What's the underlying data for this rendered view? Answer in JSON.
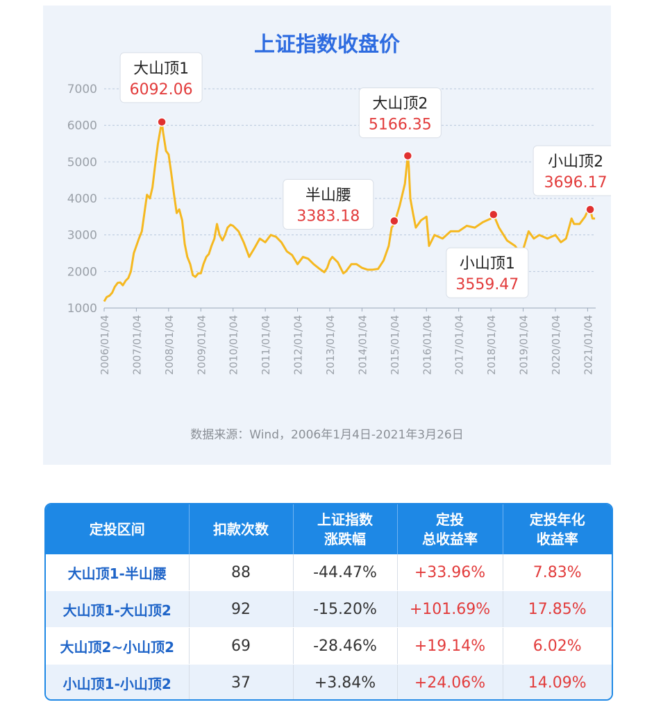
{
  "chart_data": {
    "type": "line",
    "title": "上证指数收盘价",
    "source": "数据来源：Wind，2006年1月4日-2021年3月26日",
    "ylim": [
      1000,
      7000
    ],
    "yticks": [
      1000,
      2000,
      3000,
      4000,
      5000,
      6000,
      7000
    ],
    "x_tick_labels": [
      "2006/01/04",
      "2007/01/04",
      "2008/01/04",
      "2009/01/04",
      "2010/01/04",
      "2011/01/04",
      "2012/01/04",
      "2013/01/04",
      "2014/01/04",
      "2015/01/04",
      "2016/01/04",
      "2017/01/04",
      "2018/01/04",
      "2019/01/04",
      "2020/01/04",
      "2021/01/04"
    ],
    "grid": true,
    "line_color": "#f5b81f",
    "series": [
      {
        "x": [
          2006.0,
          2006.08,
          2006.17,
          2006.25,
          2006.33,
          2006.42,
          2006.5,
          2006.58,
          2006.67,
          2006.75,
          2006.83,
          2006.92,
          2007.0,
          2007.08,
          2007.17,
          2007.25,
          2007.33,
          2007.42,
          2007.5,
          2007.58,
          2007.67,
          2007.75,
          2007.79,
          2007.83,
          2007.92,
          2008.0,
          2008.08,
          2008.17,
          2008.25,
          2008.33,
          2008.42,
          2008.5,
          2008.58,
          2008.67,
          2008.75,
          2008.83,
          2008.92,
          2009.0,
          2009.08,
          2009.17,
          2009.25,
          2009.33,
          2009.42,
          2009.5,
          2009.58,
          2009.67,
          2009.75,
          2009.83,
          2009.92,
          2010.0,
          2010.17,
          2010.33,
          2010.5,
          2010.67,
          2010.83,
          2011.0,
          2011.17,
          2011.33,
          2011.5,
          2011.67,
          2011.83,
          2012.0,
          2012.17,
          2012.33,
          2012.5,
          2012.67,
          2012.83,
          2012.92,
          2013.0,
          2013.08,
          2013.25,
          2013.42,
          2013.5,
          2013.67,
          2013.83,
          2014.0,
          2014.17,
          2014.33,
          2014.5,
          2014.67,
          2014.83,
          2014.92,
          2015.0,
          2015.17,
          2015.33,
          2015.42,
          2015.45,
          2015.5,
          2015.58,
          2015.67,
          2015.83,
          2016.0,
          2016.08,
          2016.25,
          2016.5,
          2016.75,
          2017.0,
          2017.25,
          2017.5,
          2017.75,
          2018.0,
          2018.08,
          2018.25,
          2018.5,
          2018.75,
          2018.92,
          2019.0,
          2019.17,
          2019.33,
          2019.5,
          2019.75,
          2020.0,
          2020.17,
          2020.33,
          2020.5,
          2020.58,
          2020.75,
          2020.92,
          2021.0,
          2021.08,
          2021.15,
          2021.23
        ],
        "y": [
          1180,
          1300,
          1340,
          1420,
          1580,
          1690,
          1700,
          1620,
          1750,
          1820,
          2000,
          2500,
          2700,
          2900,
          3100,
          3600,
          4100,
          4000,
          4300,
          4900,
          5500,
          5900,
          6092,
          5800,
          5300,
          5200,
          4700,
          4100,
          3600,
          3700,
          3400,
          2750,
          2400,
          2200,
          1900,
          1850,
          1950,
          1950,
          2200,
          2400,
          2480,
          2700,
          2900,
          3300,
          3000,
          2850,
          3000,
          3200,
          3280,
          3250,
          3100,
          2800,
          2400,
          2650,
          2900,
          2800,
          3000,
          2950,
          2800,
          2550,
          2450,
          2200,
          2400,
          2350,
          2200,
          2080,
          1980,
          2100,
          2300,
          2400,
          2250,
          1950,
          2000,
          2200,
          2200,
          2100,
          2050,
          2050,
          2070,
          2300,
          2700,
          3200,
          3300,
          3800,
          4400,
          5166,
          4900,
          4000,
          3600,
          3200,
          3400,
          3500,
          2700,
          3000,
          2900,
          3100,
          3100,
          3250,
          3200,
          3350,
          3450,
          3559,
          3200,
          2850,
          2700,
          2500,
          2600,
          3100,
          2900,
          3000,
          2900,
          3000,
          2800,
          2900,
          3450,
          3300,
          3300,
          3500,
          3650,
          3696,
          3450,
          3450
        ]
      }
    ],
    "annotations": [
      {
        "name": "大山顶1",
        "value": "6092.06",
        "x": 2007.79,
        "y": 6092
      },
      {
        "name": "大山顶2",
        "value": "5166.35",
        "x": 2015.42,
        "y": 5166
      },
      {
        "name": "半山腰",
        "value": "3383.18",
        "x": 2015.0,
        "y": 3383
      },
      {
        "name": "小山顶1",
        "value": "3559.47",
        "x": 2018.08,
        "y": 3559
      },
      {
        "name": "小山顶2",
        "value": "3696.17",
        "x": 2021.08,
        "y": 3696
      }
    ]
  },
  "table": {
    "headers": [
      {
        "line1": "定投区间",
        "line2": ""
      },
      {
        "line1": "扣款次数",
        "line2": ""
      },
      {
        "line1": "上证指数",
        "line2": "涨跌幅"
      },
      {
        "line1": "定投",
        "line2": "总收益率"
      },
      {
        "line1": "定投年化",
        "line2": "收益率"
      }
    ],
    "rows": [
      {
        "period": "大山顶1-半山腰",
        "count": "88",
        "change": "-44.47%",
        "total": "+33.96%",
        "annual": "7.83%"
      },
      {
        "period": "大山顶1-大山顶2",
        "count": "92",
        "change": "-15.20%",
        "total": "+101.69%",
        "annual": "17.85%"
      },
      {
        "period": "大山顶2~小山顶2",
        "count": "69",
        "change": "-28.46%",
        "total": "+19.14%",
        "annual": "6.02%"
      },
      {
        "period": "小山顶1-小山顶2",
        "count": "37",
        "change": "+3.84%",
        "total": "+24.06%",
        "annual": "14.09%"
      }
    ],
    "accent": "#1e88e5",
    "value_red": "#e23b3b"
  }
}
